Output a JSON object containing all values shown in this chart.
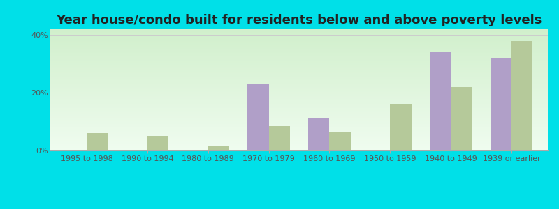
{
  "title": "Year house/condo built for residents below and above poverty levels",
  "categories": [
    "1995 to 1998",
    "1990 to 1994",
    "1980 to 1989",
    "1970 to 1979",
    "1960 to 1969",
    "1950 to 1959",
    "1940 to 1949",
    "1939 or earlier"
  ],
  "below_poverty": [
    0,
    0,
    0,
    23,
    11,
    0,
    34,
    32
  ],
  "above_poverty": [
    6,
    5,
    1.5,
    8.5,
    6.5,
    16,
    22,
    38
  ],
  "below_color": "#b09fc8",
  "above_color": "#b5c99a",
  "ylabel_ticks": [
    "0%",
    "20%",
    "40%"
  ],
  "ytick_vals": [
    0,
    20,
    40
  ],
  "ylim": [
    0,
    42
  ],
  "title_fontsize": 13,
  "tick_fontsize": 8,
  "legend_fontsize": 9,
  "bar_width": 0.35,
  "outer_bg": "#00e0e8"
}
